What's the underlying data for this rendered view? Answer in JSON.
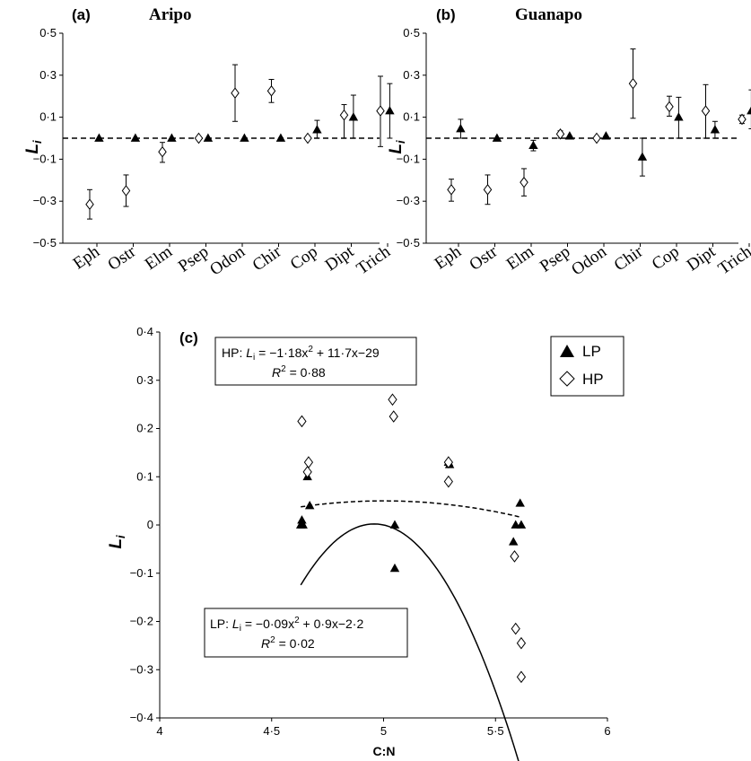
{
  "chart_data": [
    {
      "panel": "(a)",
      "title": "Aripo",
      "type": "scatter",
      "ylabel": "L",
      "ylabel_sub": "i",
      "ylim": [
        -0.5,
        0.5
      ],
      "yticks": [
        -0.5,
        -0.3,
        -0.1,
        0.1,
        0.3,
        0.5
      ],
      "ytick_labels": [
        "−0·5",
        "−0·3",
        "−0·1",
        "0·1",
        "0·3",
        "0·5"
      ],
      "categories": [
        "Eph",
        "Ostr",
        "Elm",
        "Psep",
        "Odon",
        "Chir",
        "Cop",
        "Dipt",
        "Trich"
      ],
      "reference_line": 0,
      "series": [
        {
          "name": "HP",
          "marker": "diamond",
          "values": [
            -0.315,
            -0.25,
            -0.065,
            0.0,
            0.215,
            0.225,
            0.0,
            0.11,
            0.13
          ],
          "err_low": [
            -0.385,
            -0.325,
            -0.115,
            null,
            0.08,
            0.17,
            null,
            0.0,
            -0.04
          ],
          "err_high": [
            -0.245,
            -0.175,
            -0.02,
            null,
            0.35,
            0.28,
            null,
            0.16,
            0.295
          ]
        },
        {
          "name": "LP",
          "marker": "triangle",
          "values": [
            0.0,
            0.0,
            0.0,
            0.0,
            0.0,
            0.0,
            0.04,
            0.1,
            0.13
          ],
          "err_low": [
            null,
            null,
            null,
            null,
            null,
            null,
            0.0,
            0.0,
            0.0
          ],
          "err_high": [
            null,
            null,
            null,
            null,
            null,
            null,
            0.085,
            0.205,
            0.26
          ]
        }
      ]
    },
    {
      "panel": "(b)",
      "title": "Guanapo",
      "type": "scatter",
      "ylabel": "L",
      "ylabel_sub": "i",
      "ylim": [
        -0.5,
        0.5
      ],
      "yticks": [
        -0.5,
        -0.3,
        -0.1,
        0.1,
        0.3,
        0.5
      ],
      "ytick_labels": [
        "−0·5",
        "−0·3",
        "−0·1",
        "0·1",
        "0·3",
        "0·5"
      ],
      "categories": [
        "Eph",
        "Ostr",
        "Elm",
        "Psep",
        "Odon",
        "Chir",
        "Cop",
        "Dipt",
        "Trich"
      ],
      "reference_line": 0,
      "series": [
        {
          "name": "HP",
          "marker": "diamond",
          "values": [
            -0.245,
            -0.245,
            -0.21,
            0.02,
            0.0,
            0.26,
            0.15,
            0.13,
            0.09
          ],
          "err_low": [
            -0.3,
            -0.315,
            -0.275,
            0.0,
            null,
            0.095,
            0.105,
            0.0,
            0.07
          ],
          "err_high": [
            -0.195,
            -0.175,
            -0.145,
            0.035,
            null,
            0.425,
            0.2,
            0.255,
            0.11
          ]
        },
        {
          "name": "LP",
          "marker": "triangle",
          "values": [
            0.045,
            0.0,
            -0.035,
            0.01,
            0.01,
            -0.09,
            0.1,
            0.04,
            0.13
          ],
          "err_low": [
            0.0,
            null,
            -0.06,
            null,
            null,
            -0.18,
            0.0,
            0.0,
            0.045
          ],
          "err_high": [
            0.09,
            null,
            -0.01,
            null,
            null,
            0.0,
            0.195,
            0.08,
            0.23
          ]
        }
      ]
    },
    {
      "panel": "(c)",
      "type": "scatter",
      "xlabel": "C:N",
      "ylabel": "L",
      "ylabel_sub": "i",
      "xlim": [
        4,
        6
      ],
      "ylim": [
        -0.4,
        0.4
      ],
      "xticks": [
        4,
        4.5,
        5,
        5.5,
        6
      ],
      "xtick_labels": [
        "4",
        "4·5",
        "5",
        "5·5",
        "6"
      ],
      "yticks": [
        -0.4,
        -0.3,
        -0.2,
        -0.1,
        0,
        0.1,
        0.2,
        0.3,
        0.4
      ],
      "ytick_labels": [
        "−0·4",
        "−0·3",
        "−0·2",
        "−0·1",
        "0",
        "0·1",
        "0·2",
        "0·3",
        "0·4"
      ],
      "legend": [
        "LP",
        "HP"
      ],
      "legend_position": "top-right",
      "series": [
        {
          "name": "LP",
          "marker": "triangle",
          "points": [
            [
              4.63,
              0.0
            ],
            [
              4.635,
              0.01
            ],
            [
              4.64,
              0.0
            ],
            [
              4.66,
              0.1
            ],
            [
              4.67,
              0.04
            ],
            [
              5.05,
              0.0
            ],
            [
              5.05,
              -0.09
            ],
            [
              5.29,
              0.13
            ],
            [
              5.295,
              0.125
            ],
            [
              5.58,
              -0.035
            ],
            [
              5.59,
              0.0
            ],
            [
              5.61,
              0.045
            ],
            [
              5.615,
              0.0
            ]
          ],
          "fit": {
            "a": -0.09,
            "b": 0.9,
            "c": -2.2,
            "x_range": [
              4.63,
              5.615
            ],
            "style": "dashed"
          }
        },
        {
          "name": "HP",
          "marker": "diamond",
          "points": [
            [
              4.635,
              0.215
            ],
            [
              4.66,
              0.11
            ],
            [
              4.665,
              0.13
            ],
            [
              5.04,
              0.26
            ],
            [
              5.045,
              0.225
            ],
            [
              5.29,
              0.13
            ],
            [
              5.29,
              0.09
            ],
            [
              5.585,
              -0.065
            ],
            [
              5.59,
              -0.215
            ],
            [
              5.615,
              -0.245
            ],
            [
              5.615,
              -0.315
            ]
          ],
          "fit": {
            "a": -1.18,
            "b": 11.7,
            "c": -29,
            "x_range": [
              4.63,
              5.615
            ],
            "style": "solid"
          }
        }
      ],
      "equations": {
        "hp": {
          "prefix": "HP: ",
          "rhs": " = −1·18x",
          "tail": " + 11·7x−29",
          "r2": " = 0·88"
        },
        "lp": {
          "prefix": "LP: ",
          "rhs": " = −0·09x",
          "tail": " + 0·9x−2·2",
          "r2": " = 0·02"
        }
      }
    }
  ]
}
